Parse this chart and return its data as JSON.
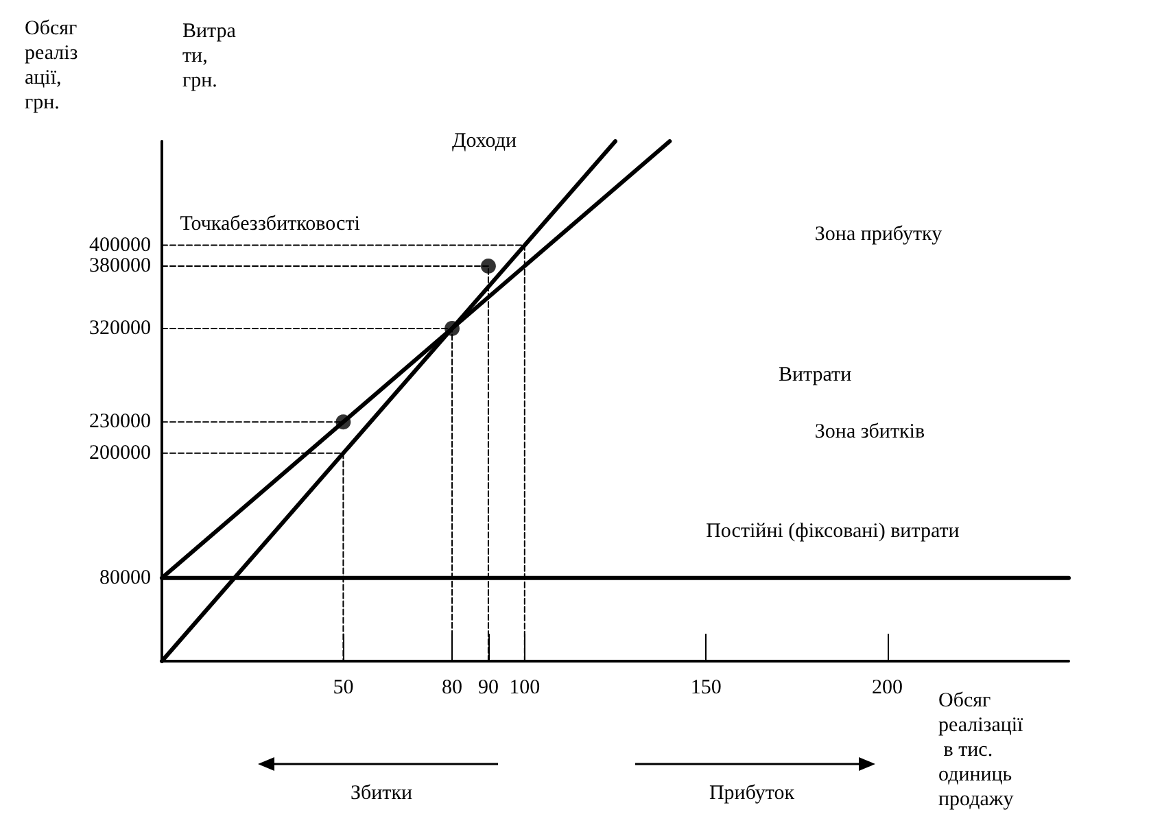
{
  "chart_data": {
    "type": "line",
    "ylabel": "Обсяг реалізації, грн.",
    "xlabel": "Обсяг реалізації в тис. одиниць продажу",
    "xlim": [
      0,
      250
    ],
    "ylim": [
      0,
      500000
    ],
    "xticks": [
      50,
      80,
      90,
      100,
      150,
      200
    ],
    "yticks": [
      80000,
      200000,
      230000,
      320000,
      380000,
      400000
    ],
    "grid": false,
    "marker": "none",
    "line_style": "solid",
    "series": [
      {
        "color": "#000000",
        "x": [
          0,
          125
        ],
        "values": [
          0,
          500000
        ]
      },
      {
        "color": "#000000",
        "x": [
          0,
          140
        ],
        "values": [
          80000,
          500000
        ]
      },
      {
        "color": "#000000",
        "x": [
          0,
          250
        ],
        "values": [
          80000,
          80000
        ]
      },
      {
        "color": "#000000",
        "x": [
          0,
          100,
          100
        ],
        "values": [
          400000,
          400000,
          0
        ],
        "line_style": "dashed"
      },
      {
        "color": "#000000",
        "x": [
          0,
          90,
          90
        ],
        "values": [
          380000,
          380000,
          0
        ],
        "line_style": "dashed"
      },
      {
        "color": "#000000",
        "x": [
          0,
          80,
          80
        ],
        "values": [
          320000,
          320000,
          0
        ],
        "line_style": "dashed"
      },
      {
        "color": "#000000",
        "x": [
          0,
          50
        ],
        "values": [
          230000,
          230000
        ],
        "line_style": "dashed"
      },
      {
        "color": "#000000",
        "x": [
          0,
          50,
          50
        ],
        "values": [
          200000,
          200000,
          0
        ],
        "line_style": "dashed"
      },
      {
        "type": "scatter",
        "color": "#000000",
        "x": [
          50,
          80,
          90
        ],
        "values": [
          230000,
          320000,
          380000
        ],
        "marker": "circle"
      }
    ],
    "annotations": [
      "Витрати, грн.",
      "Збитки",
      "Прибуток",
      "Точкабеззбитковості",
      "Доходи",
      "Зона прибутку",
      "Витрати",
      "Зона збитків",
      "Постійні (фіксовані) витрати"
    ]
  }
}
